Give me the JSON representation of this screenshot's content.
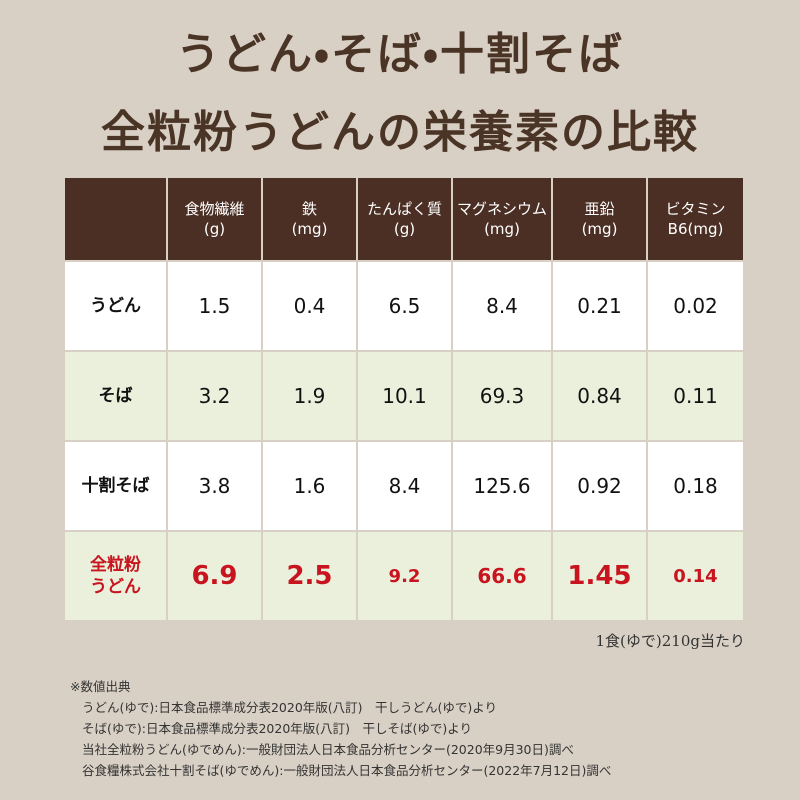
{
  "header": {
    "title_lines": [
      "うどん・そば・十割そば",
      "全粒粉うどんの栄養素の比較"
    ]
  },
  "table": {
    "columns": [
      [
        "食物繊維",
        "(g)"
      ],
      [
        "鉄",
        "(mg)"
      ],
      [
        "たんぱく質",
        "(g)"
      ],
      [
        "マグネシウム",
        "(mg)"
      ],
      [
        "亜鉛",
        "(mg)"
      ],
      [
        "ビタミン",
        "B6(mg)"
      ]
    ],
    "rows": [
      {
        "label": [
          "うどん"
        ],
        "values": [
          "1.5",
          "0.4",
          "6.5",
          "8.4",
          "0.21",
          "0.02"
        ]
      },
      {
        "label": [
          "そば"
        ],
        "values": [
          "3.2",
          "1.9",
          "10.1",
          "69.3",
          "0.84",
          "0.11"
        ]
      },
      {
        "label": [
          "十割そば"
        ],
        "values": [
          "3.8",
          "1.6",
          "8.4",
          "125.6",
          "0.92",
          "0.18"
        ]
      },
      {
        "label": [
          "全粒粉",
          "うどん"
        ],
        "values": [
          "6.9",
          "2.5",
          "9.2",
          "66.6",
          "1.45",
          "0.14"
        ]
      }
    ],
    "note": "1食(ゆで)210g当たり"
  },
  "sources": {
    "heading": "※数値出典",
    "lines": [
      "うどん(ゆで):日本食品標準成分表2020年版(八訂)　干しうどん(ゆで)より",
      "そば(ゆで):日本食品標準成分表2020年版(八訂)　干しそば(ゆで)より",
      "当社全粒粉うどん(ゆでめん):一般財団法人日本食品分析センター(2020年9月30日)調べ",
      "谷食糧株式会社十割そば(ゆでめん):一般財団法人日本食品分析センター(2022年7月12日)調べ"
    ]
  }
}
